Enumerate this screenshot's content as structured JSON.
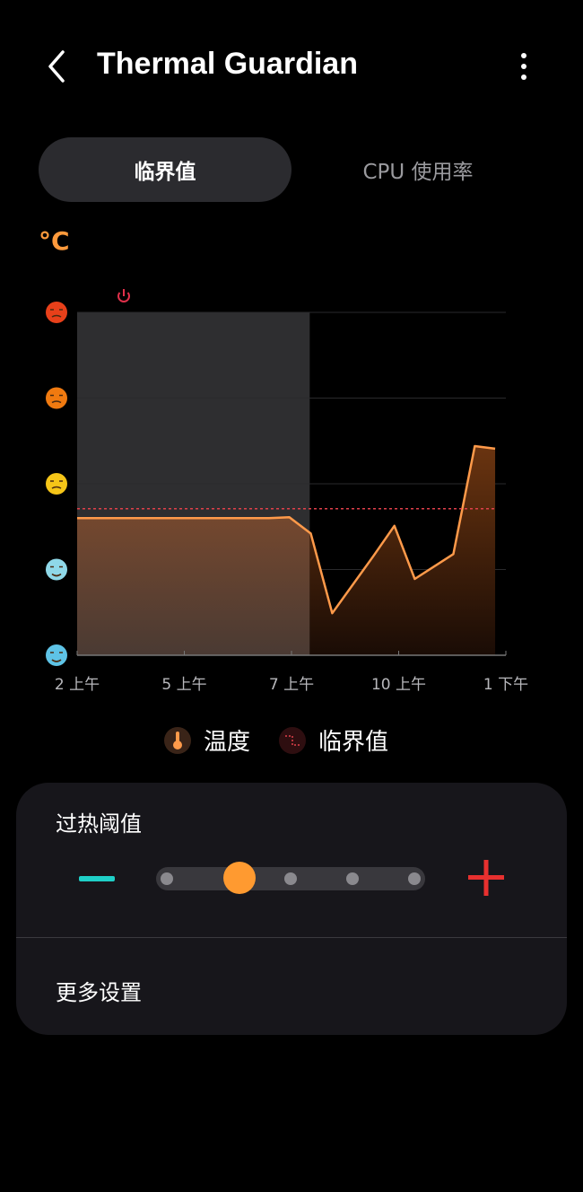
{
  "header": {
    "title": "Thermal Guardian",
    "back_icon": "chevron-left-icon",
    "menu_icon": "more-vertical-icon"
  },
  "tabs": [
    {
      "label": "临界值",
      "active": true
    },
    {
      "label": "CPU 使用率",
      "active": false
    }
  ],
  "chart_data": {
    "type": "area",
    "unit_label": "°C",
    "x_unit": "hour",
    "x_ticks": [
      2,
      5,
      7,
      10,
      13
    ],
    "x_tick_labels": [
      "2 上午",
      "5 上午",
      "7 上午",
      "10 上午",
      "1 下午"
    ],
    "y_levels": [
      "freezing-face",
      "smiling-face",
      "neutral-face",
      "sad-sweat-face",
      "dizzy-hot-face"
    ],
    "ylim": [
      0,
      4
    ],
    "grid": true,
    "series": [
      {
        "name": "温度",
        "color": "#ff9a4a",
        "x": [
          2,
          6.58,
          6.96,
          7.54,
          8.14,
          9.28,
          9.88,
          10.45,
          11.53,
          12.13,
          12.7
        ],
        "y": [
          1.6,
          1.6,
          1.61,
          1.42,
          0.49,
          1.15,
          1.51,
          0.89,
          1.18,
          2.44,
          2.41
        ]
      }
    ],
    "threshold": {
      "name": "临界值",
      "value": 1.71,
      "color": "#e0404a"
    },
    "shaded_range": [
      2,
      7.51
    ],
    "marker_icon": "power-icon",
    "marker_color": "#e0304a"
  },
  "legend": [
    {
      "label": "温度",
      "icon": "thermometer-icon"
    },
    {
      "label": "临界值",
      "icon": "threshold-step-icon"
    }
  ],
  "settings": {
    "threshold_label": "过热阈值",
    "slider_steps": 5,
    "slider_value_index": 1,
    "more_label": "更多设置",
    "minus_color": "#1fd0c8",
    "plus_color": "#e8302f",
    "accent": "#ff9a30"
  }
}
